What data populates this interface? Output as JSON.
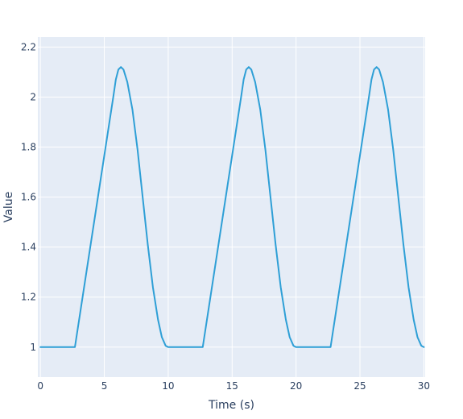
{
  "chart_data": {
    "type": "line",
    "title": "",
    "xlabel": "Time (s)",
    "ylabel": "Value",
    "xlim": [
      -0.2,
      30.1
    ],
    "ylim": [
      0.88,
      2.24
    ],
    "x_ticks": [
      0,
      5,
      10,
      15,
      20,
      25,
      30
    ],
    "y_ticks": [
      1,
      1.2,
      1.4,
      1.6,
      1.8,
      2,
      2.2
    ],
    "x_tick_labels": [
      "0",
      "5",
      "10",
      "15",
      "20",
      "25",
      "30"
    ],
    "y_tick_labels": [
      "1",
      "1.2",
      "1.4",
      "1.6",
      "1.8",
      "2",
      "2.2"
    ],
    "grid": true,
    "legend": "none",
    "colors": {
      "plot_background": "#e5ecf6",
      "grid": "#ffffff",
      "line": "#2e9fd6",
      "text": "#2a3f5f"
    },
    "series": [
      {
        "x": [
          0,
          2.7,
          5.7,
          5.9,
          6.1,
          6.3,
          6.5,
          6.8,
          7.2,
          7.6,
          8.0,
          8.4,
          8.8,
          9.2,
          9.5,
          9.8,
          10.0,
          12.7,
          15.7,
          15.9,
          16.1,
          16.3,
          16.5,
          16.8,
          17.2,
          17.6,
          18.0,
          18.4,
          18.8,
          19.2,
          19.5,
          19.8,
          20.0,
          22.7,
          25.7,
          25.9,
          26.1,
          26.3,
          26.5,
          26.8,
          27.2,
          27.6,
          28.0,
          28.4,
          28.8,
          29.2,
          29.5,
          29.8,
          30.0
        ],
        "y": [
          1.0,
          1.0,
          2.0,
          2.07,
          2.11,
          2.12,
          2.11,
          2.06,
          1.95,
          1.79,
          1.6,
          1.41,
          1.24,
          1.11,
          1.04,
          1.005,
          1.0,
          1.0,
          2.0,
          2.07,
          2.11,
          2.12,
          2.11,
          2.06,
          1.95,
          1.79,
          1.6,
          1.41,
          1.24,
          1.11,
          1.04,
          1.005,
          1.0,
          1.0,
          2.0,
          2.07,
          2.11,
          2.12,
          2.11,
          2.06,
          1.95,
          1.79,
          1.6,
          1.41,
          1.24,
          1.11,
          1.04,
          1.005,
          1.0
        ]
      }
    ]
  }
}
